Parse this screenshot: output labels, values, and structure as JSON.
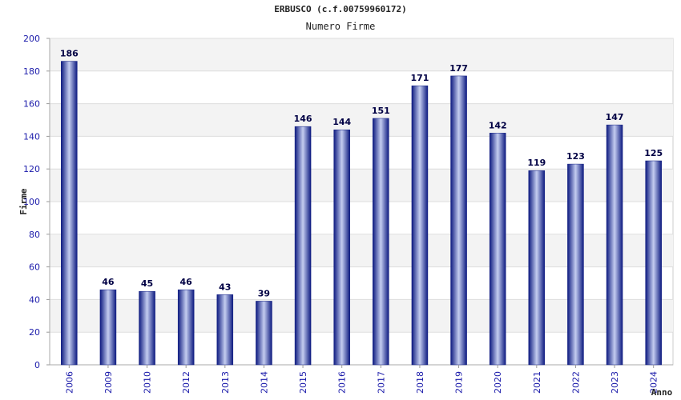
{
  "chart_data": {
    "type": "bar",
    "title": "ERBUSCO (c.f.00759960172)",
    "subtitle": "Numero Firme",
    "xlabel": "Anno",
    "ylabel": "Firme",
    "ylim": [
      0,
      200
    ],
    "yticks": [
      0,
      20,
      40,
      60,
      80,
      100,
      120,
      140,
      160,
      180,
      200
    ],
    "categories": [
      "2006",
      "2009",
      "2010",
      "2012",
      "2013",
      "2014",
      "2015",
      "2016",
      "2017",
      "2018",
      "2019",
      "2020",
      "2021",
      "2022",
      "2023",
      "2024"
    ],
    "values": [
      186,
      46,
      45,
      46,
      43,
      39,
      146,
      144,
      151,
      171,
      177,
      142,
      119,
      123,
      147,
      125
    ],
    "grid": true,
    "bar_color": "#1b2a8f",
    "band_color": "#f3f3f3"
  }
}
